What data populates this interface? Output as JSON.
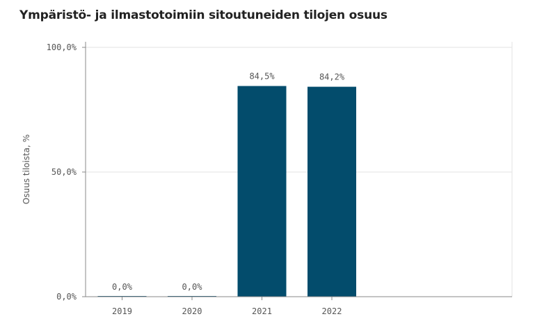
{
  "colors": {
    "bar": "#034c6c",
    "grid": "#e3e3e3",
    "axis": "#888888",
    "text": "#555555"
  },
  "chart_data": {
    "type": "bar",
    "title": "Ympäristö- ja ilmastotoimiin sitoutuneiden tilojen osuus",
    "xlabel": "",
    "ylabel": "Osuus tiloista, %",
    "categories": [
      "2019",
      "2020",
      "2021",
      "2022"
    ],
    "values": [
      0.0,
      0.0,
      84.5,
      84.2
    ],
    "data_labels": [
      "0,0%",
      "0,0%",
      "84,5%",
      "84,2%"
    ],
    "ylim": [
      0,
      100
    ],
    "yticks": [
      0,
      50,
      100
    ],
    "ytick_labels": [
      "0,0%",
      "50,0%",
      "100,0%"
    ],
    "grid": true,
    "legend": "none"
  }
}
